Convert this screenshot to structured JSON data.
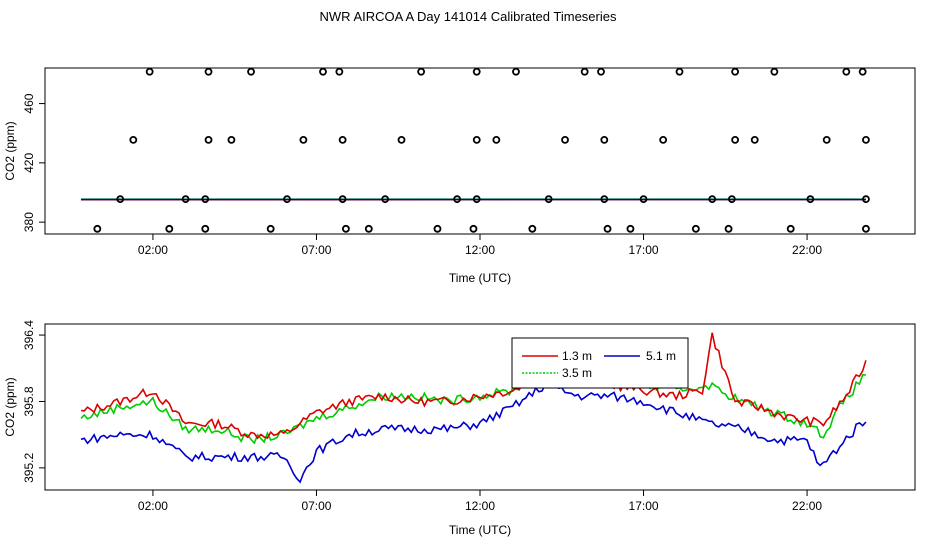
{
  "title": "NWR AIRCOA A  Day 141014  Calibrated Timeseries",
  "colors": {
    "series_red": "#dd0000",
    "series_green": "#00cc00",
    "series_blue": "#0000cc",
    "marker": "#000000"
  },
  "chart_data": [
    {
      "type": "scatter",
      "title": "",
      "xlabel": "Time (UTC)",
      "ylabel": "CO2 (ppm)",
      "xlim": [
        -1.3,
        25.3
      ],
      "ylim": [
        372,
        484
      ],
      "xticks": [
        2,
        7,
        12,
        17,
        22
      ],
      "xtick_labels": [
        "02:00",
        "07:00",
        "12:00",
        "17:00",
        "22:00"
      ],
      "yticks": [
        380,
        420,
        460
      ],
      "ytick_labels": [
        "380",
        "420",
        "460"
      ],
      "grid": false,
      "point_series": [
        {
          "name": "",
          "color": "#000000",
          "points": [
            [
              0.3,
              375.5
            ],
            [
              1.0,
              395.5
            ],
            [
              1.4,
              435.5
            ],
            [
              1.9,
              481.5
            ],
            [
              2.5,
              375.5
            ],
            [
              3.0,
              395.5
            ],
            [
              3.6,
              375.5
            ],
            [
              3.6,
              395.5
            ],
            [
              3.7,
              435.5
            ],
            [
              3.7,
              481.5
            ],
            [
              4.4,
              435.5
            ],
            [
              5.0,
              481.5
            ],
            [
              5.6,
              375.5
            ],
            [
              6.1,
              395.5
            ],
            [
              6.6,
              435.5
            ],
            [
              7.2,
              481.5
            ],
            [
              7.7,
              481.5
            ],
            [
              7.8,
              435.5
            ],
            [
              7.8,
              395.5
            ],
            [
              7.9,
              375.5
            ],
            [
              8.6,
              375.5
            ],
            [
              9.1,
              395.5
            ],
            [
              9.6,
              435.5
            ],
            [
              10.2,
              481.5
            ],
            [
              10.7,
              375.5
            ],
            [
              11.3,
              395.5
            ],
            [
              11.8,
              375.5
            ],
            [
              11.9,
              395.5
            ],
            [
              11.9,
              435.5
            ],
            [
              11.9,
              481.5
            ],
            [
              12.5,
              435.5
            ],
            [
              13.1,
              481.5
            ],
            [
              13.6,
              375.5
            ],
            [
              14.1,
              395.5
            ],
            [
              14.6,
              435.5
            ],
            [
              15.2,
              481.5
            ],
            [
              15.7,
              481.5
            ],
            [
              15.8,
              435.5
            ],
            [
              15.8,
              395.5
            ],
            [
              15.9,
              375.5
            ],
            [
              16.6,
              375.5
            ],
            [
              17.0,
              395.5
            ],
            [
              17.6,
              435.5
            ],
            [
              18.1,
              481.5
            ],
            [
              18.6,
              375.5
            ],
            [
              19.1,
              395.5
            ],
            [
              19.6,
              375.5
            ],
            [
              19.7,
              395.5
            ],
            [
              19.8,
              435.5
            ],
            [
              19.8,
              481.5
            ],
            [
              20.4,
              435.5
            ],
            [
              21.0,
              481.5
            ],
            [
              21.5,
              375.5
            ],
            [
              22.1,
              395.5
            ],
            [
              22.6,
              435.5
            ],
            [
              23.2,
              481.5
            ],
            [
              23.7,
              481.5
            ],
            [
              23.8,
              435.5
            ],
            [
              23.8,
              395.5
            ],
            [
              23.8,
              375.5
            ]
          ]
        }
      ],
      "line_series": [
        {
          "name": "",
          "color": "#dd0000",
          "x": [
            -0.2,
            23.8
          ],
          "values": [
            395.1,
            395.2
          ]
        },
        {
          "name": "",
          "color": "#00cc00",
          "x": [
            -0.2,
            23.8
          ],
          "values": [
            395.5,
            395.5
          ]
        },
        {
          "name": "",
          "color": "#0000cc",
          "x": [
            -0.2,
            23.8
          ],
          "values": [
            395.3,
            395.3
          ]
        }
      ]
    },
    {
      "type": "line",
      "title": "",
      "xlabel": "Time (UTC)",
      "ylabel": "CO2 (ppm)",
      "xlim": [
        -1.3,
        25.3
      ],
      "ylim": [
        395.0,
        396.5
      ],
      "xticks": [
        2,
        7,
        12,
        17,
        22
      ],
      "xtick_labels": [
        "02:00",
        "07:00",
        "12:00",
        "17:00",
        "22:00"
      ],
      "yticks": [
        395.2,
        395.8,
        396.4
      ],
      "ytick_labels": [
        "395.2",
        "395.8",
        "396.4"
      ],
      "grid": false,
      "legend": {
        "position": "top-center",
        "entries": [
          "1.3 m",
          "5.1 m",
          "3.5 m"
        ]
      },
      "series": [
        {
          "name": "1.3 m",
          "color": "#dd0000",
          "x_start": -0.2,
          "x_step": 0.1,
          "anchors": [
            [
              -0.2,
              395.7
            ],
            [
              1.0,
              395.8
            ],
            [
              2.0,
              395.9
            ],
            [
              3.0,
              395.6
            ],
            [
              4.0,
              395.6
            ],
            [
              5.0,
              395.5
            ],
            [
              6.0,
              395.5
            ],
            [
              7.0,
              395.7
            ],
            [
              8.0,
              395.8
            ],
            [
              9.0,
              395.85
            ],
            [
              10.0,
              395.8
            ],
            [
              11.0,
              395.8
            ],
            [
              12.0,
              395.85
            ],
            [
              13.0,
              395.9
            ],
            [
              14.0,
              396.05
            ],
            [
              15.0,
              396.0
            ],
            [
              16.0,
              395.95
            ],
            [
              17.0,
              395.9
            ],
            [
              18.0,
              395.85
            ],
            [
              18.8,
              395.9
            ],
            [
              19.1,
              396.4
            ],
            [
              19.8,
              395.8
            ],
            [
              20.5,
              395.75
            ],
            [
              21.5,
              395.65
            ],
            [
              22.5,
              395.6
            ],
            [
              23.2,
              395.85
            ],
            [
              23.8,
              396.15
            ]
          ]
        },
        {
          "name": "5.1 m",
          "color": "#0000cc",
          "x_start": -0.2,
          "x_step": 0.1,
          "anchors": [
            [
              -0.2,
              395.45
            ],
            [
              1.0,
              395.5
            ],
            [
              2.0,
              395.5
            ],
            [
              3.0,
              395.3
            ],
            [
              4.0,
              395.3
            ],
            [
              5.0,
              395.3
            ],
            [
              6.0,
              395.3
            ],
            [
              6.5,
              395.1
            ],
            [
              7.0,
              395.35
            ],
            [
              8.0,
              395.5
            ],
            [
              9.0,
              395.55
            ],
            [
              10.0,
              395.55
            ],
            [
              11.0,
              395.55
            ],
            [
              12.0,
              395.6
            ],
            [
              13.0,
              395.75
            ],
            [
              14.0,
              395.95
            ],
            [
              15.0,
              395.85
            ],
            [
              16.0,
              395.85
            ],
            [
              17.0,
              395.8
            ],
            [
              18.0,
              395.7
            ],
            [
              19.0,
              395.6
            ],
            [
              20.0,
              395.55
            ],
            [
              21.0,
              395.45
            ],
            [
              22.0,
              395.45
            ],
            [
              22.4,
              395.2
            ],
            [
              23.0,
              395.4
            ],
            [
              23.8,
              395.65
            ]
          ]
        },
        {
          "name": "3.5 m",
          "color": "#00cc00",
          "x_start": -0.2,
          "x_step": 0.1,
          "anchors": [
            [
              -0.2,
              395.65
            ],
            [
              1.0,
              395.75
            ],
            [
              2.0,
              395.8
            ],
            [
              3.0,
              395.55
            ],
            [
              4.0,
              395.55
            ],
            [
              5.0,
              395.45
            ],
            [
              6.0,
              395.5
            ],
            [
              7.0,
              395.65
            ],
            [
              8.0,
              395.75
            ],
            [
              9.0,
              395.85
            ],
            [
              10.0,
              395.85
            ],
            [
              11.0,
              395.8
            ],
            [
              12.0,
              395.85
            ],
            [
              13.0,
              395.9
            ],
            [
              14.0,
              396.1
            ],
            [
              15.0,
              396.05
            ],
            [
              16.0,
              396.0
            ],
            [
              17.0,
              395.95
            ],
            [
              18.0,
              395.9
            ],
            [
              19.0,
              395.95
            ],
            [
              20.0,
              395.8
            ],
            [
              21.0,
              395.7
            ],
            [
              22.0,
              395.6
            ],
            [
              22.5,
              395.5
            ],
            [
              23.0,
              395.75
            ],
            [
              23.8,
              396.05
            ]
          ]
        }
      ]
    }
  ]
}
